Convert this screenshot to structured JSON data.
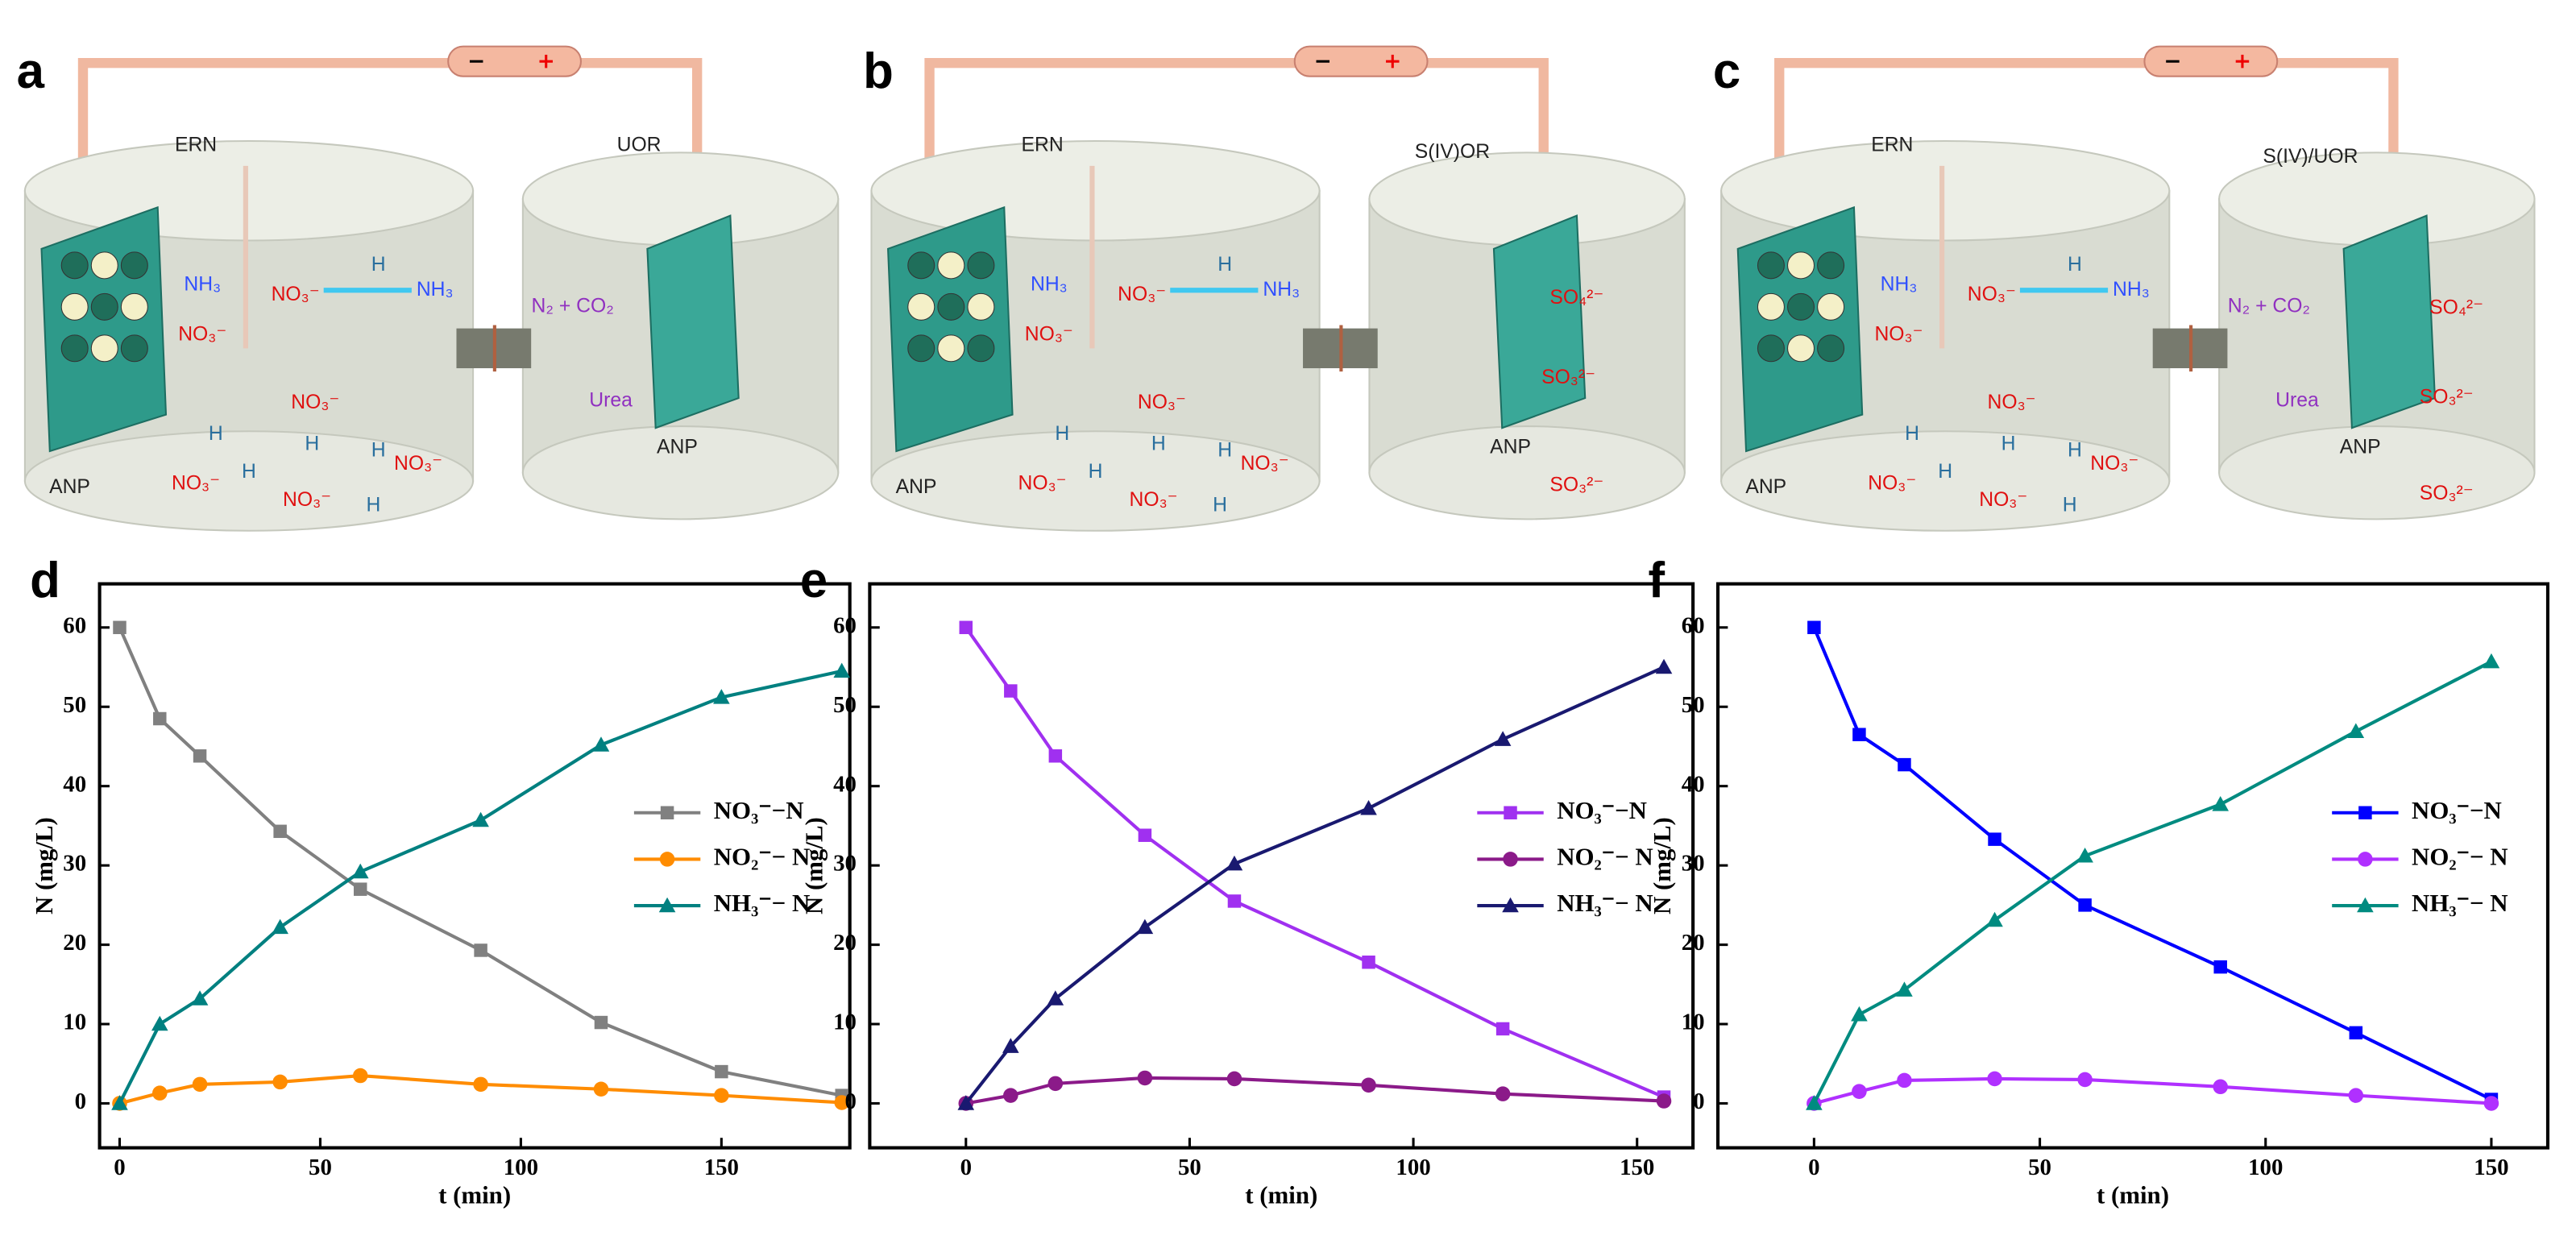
{
  "diagrams": [
    {
      "label": "a",
      "texts": [
        "ERN",
        "NH₃",
        "NO₃⁻",
        "H",
        "NH₃",
        "NO₃⁻",
        "NO₃⁻",
        "H",
        "H",
        "H",
        "NO₃⁻",
        "ANP",
        "NO₃⁻",
        "H",
        "NO₃⁻",
        "H",
        "UOR",
        "N₂ + CO₂",
        "Urea",
        "ANP"
      ]
    },
    {
      "label": "b",
      "texts": [
        "ERN",
        "NH₃",
        "NO₃⁻",
        "H",
        "NH₃",
        "NO₃⁻",
        "NO₃⁻",
        "H",
        "H",
        "H",
        "NO₃⁻",
        "ANP",
        "NO₃⁻",
        "H",
        "NO₃⁻",
        "H",
        "S(IV)OR",
        "SO₄²⁻",
        "SO₃²⁻",
        "ANP",
        "SO₃²⁻"
      ]
    },
    {
      "label": "c",
      "texts": [
        "ERN",
        "NH₃",
        "NO₃⁻",
        "H",
        "NH₃",
        "NO₃⁻",
        "NO₃⁻",
        "H",
        "H",
        "H",
        "NO₃⁻",
        "ANP",
        "NO₃⁻",
        "H",
        "NO₃⁻",
        "H",
        "S(IV)/UOR",
        "N₂ + CO₂",
        "SO₄²⁻",
        "Urea",
        "SO₃²⁻",
        "ANP",
        "SO₃²⁻"
      ]
    }
  ],
  "chart_data": [
    {
      "type": "line",
      "label": "d",
      "xlabel": "t (min)",
      "ylabel": "N (mg/L)",
      "x": [
        0,
        10,
        20,
        40,
        60,
        90,
        120,
        150,
        180
      ],
      "xlim": [
        -5,
        182
      ],
      "ylim": [
        -5.6,
        65.5
      ],
      "xticks": [
        0,
        50,
        100,
        150
      ],
      "yticks": [
        0,
        10,
        20,
        30,
        40,
        50,
        60
      ],
      "series": [
        {
          "name": "NO₃⁻−N",
          "color": "#808080",
          "marker": "square",
          "values": [
            60,
            48.5,
            43.8,
            34.3,
            27,
            19.3,
            10.2,
            4,
            1
          ]
        },
        {
          "name": "NO₂⁻− N",
          "color": "#ff8c00",
          "marker": "circle",
          "values": [
            0,
            1.3,
            2.4,
            2.7,
            3.5,
            2.4,
            1.8,
            1,
            0.1
          ]
        },
        {
          "name": "NH₃⁻− N",
          "color": "#008080",
          "marker": "triangle",
          "values": [
            0,
            10,
            13.2,
            22.2,
            29.2,
            35.7,
            45.2,
            51.2,
            54.5
          ]
        }
      ]
    },
    {
      "type": "line",
      "label": "e",
      "xlabel": "t (min)",
      "ylabel": "N (mg/L)",
      "x": [
        0,
        10,
        20,
        40,
        60,
        90,
        120,
        156
      ],
      "xlim": [
        -21.5,
        162.5
      ],
      "ylim": [
        -5.6,
        65.5
      ],
      "xticks": [
        0,
        50,
        100,
        150
      ],
      "yticks": [
        0,
        10,
        20,
        30,
        40,
        50,
        60
      ],
      "series": [
        {
          "name": "NO₃⁻−N",
          "color": "#a030f0",
          "marker": "square",
          "values": [
            60,
            52,
            43.8,
            33.8,
            25.5,
            17.8,
            9.4,
            0.8
          ]
        },
        {
          "name": "NO₂⁻− N",
          "color": "#8b1a89",
          "marker": "circle",
          "values": [
            0,
            1,
            2.5,
            3.2,
            3.1,
            2.3,
            1.2,
            0.3
          ]
        },
        {
          "name": "NH₃⁻− N",
          "color": "#191970",
          "marker": "triangle",
          "values": [
            0,
            7.2,
            13.2,
            22.2,
            30.2,
            37.2,
            45.9,
            55
          ]
        }
      ]
    },
    {
      "type": "line",
      "label": "f",
      "xlabel": "t (min)",
      "ylabel": "N (mg/L)",
      "x": [
        0,
        10,
        20,
        40,
        60,
        90,
        120,
        150
      ],
      "xlim": [
        -21.3,
        162.5
      ],
      "ylim": [
        -5.6,
        65.5
      ],
      "xticks": [
        0,
        50,
        100,
        150
      ],
      "yticks": [
        0,
        10,
        20,
        30,
        40,
        50,
        60
      ],
      "series": [
        {
          "name": "NO₃⁻−N",
          "color": "#0000ff",
          "marker": "square",
          "values": [
            60,
            46.5,
            42.7,
            33.3,
            25,
            17.2,
            8.9,
            0.5
          ]
        },
        {
          "name": "NO₂⁻− N",
          "color": "#b030ff",
          "marker": "circle",
          "values": [
            0,
            1.5,
            2.9,
            3.1,
            3,
            2.1,
            1,
            0
          ]
        },
        {
          "name": "NH₃⁻− N",
          "color": "#008b80",
          "marker": "triangle",
          "values": [
            0,
            11.2,
            14.3,
            23.1,
            31.2,
            37.7,
            46.9,
            55.7
          ]
        }
      ]
    }
  ]
}
